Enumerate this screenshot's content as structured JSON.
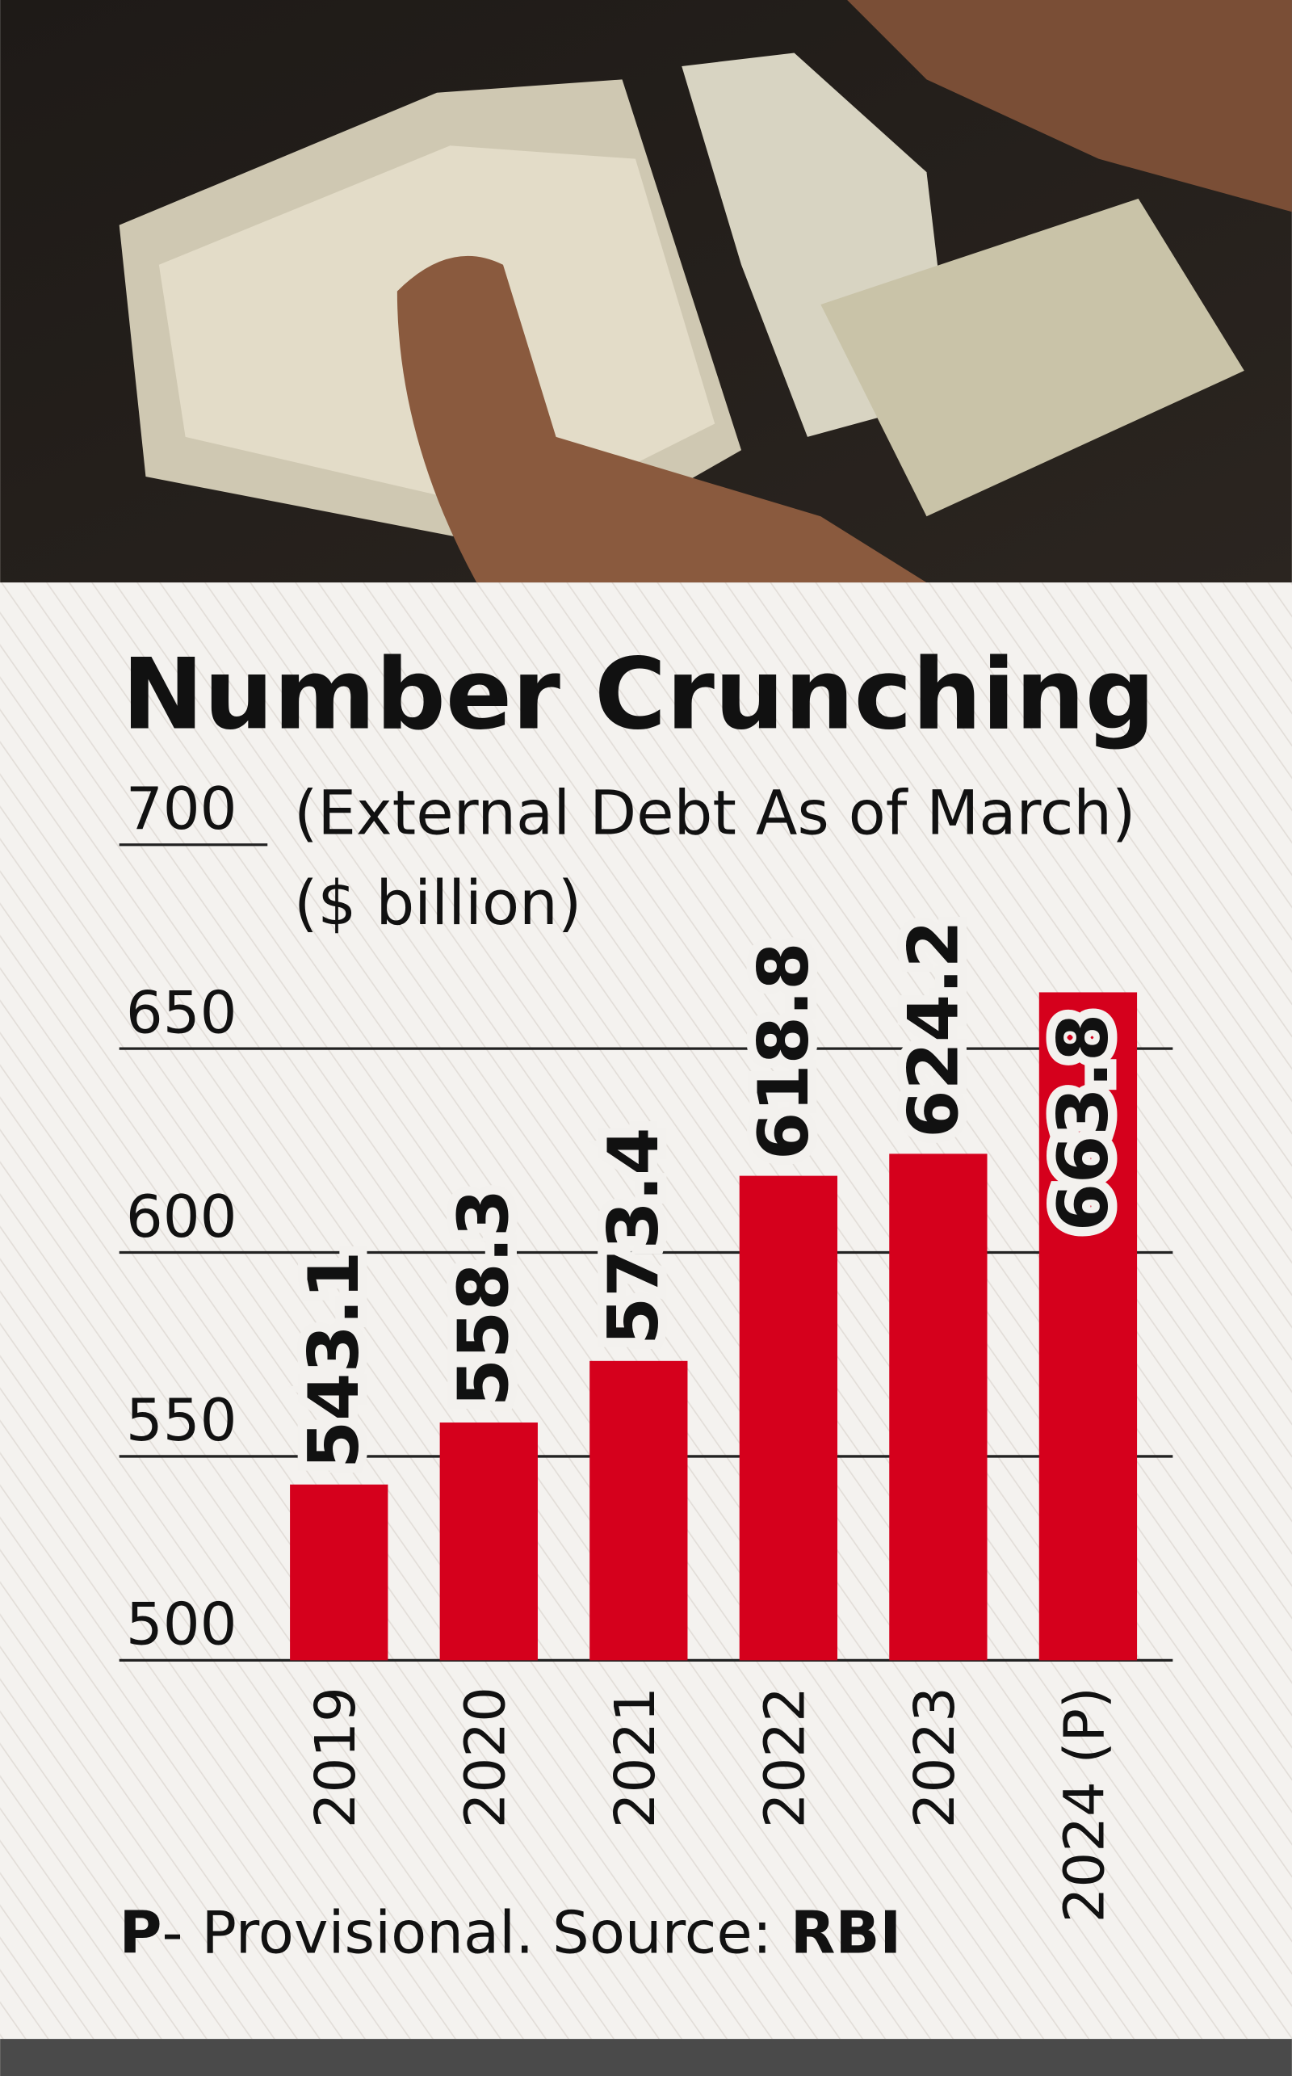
{
  "chart_data": {
    "type": "bar",
    "title": "Number Crunching",
    "subtitle": "(External Debt As of March)",
    "unit": "($ billion)",
    "categories": [
      "2019",
      "2020",
      "2021",
      "2022",
      "2023",
      "2024 (P)"
    ],
    "values": [
      543.1,
      558.3,
      573.4,
      618.8,
      624.2,
      663.8
    ],
    "color": "#d5001c",
    "ylim": [
      500,
      700
    ],
    "yticks": [
      500,
      550,
      600,
      650,
      700
    ],
    "grid": true,
    "footnote": [
      "P",
      "- Provisional. Source: ",
      "RBI"
    ]
  }
}
